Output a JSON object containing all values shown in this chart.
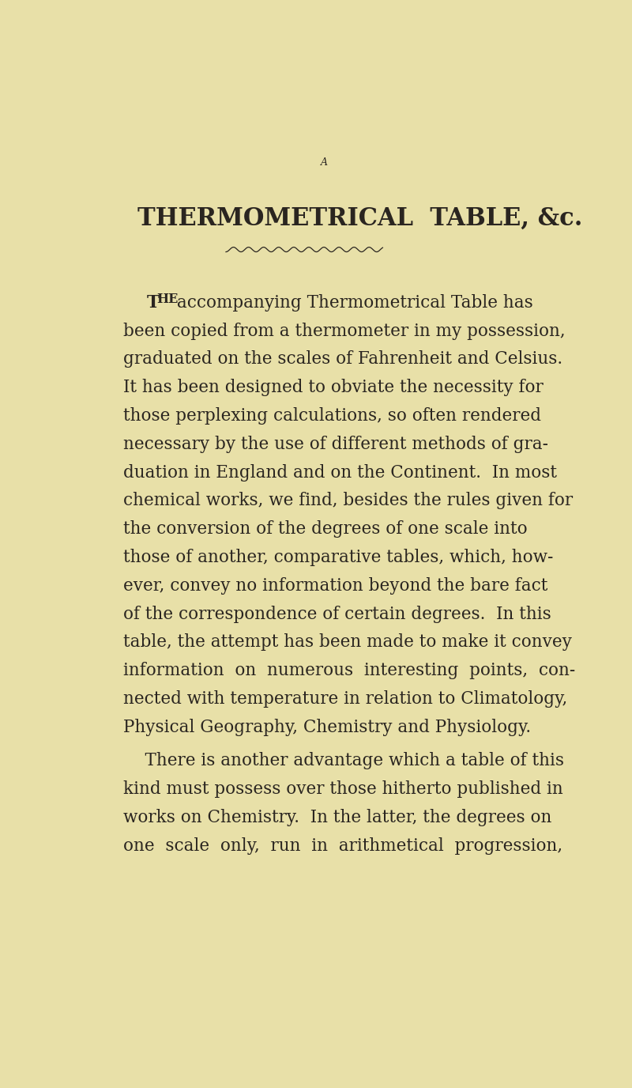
{
  "bg_color": "#e8e0a8",
  "text_color": "#2a2520",
  "page_width": 8.0,
  "page_height": 13.76,
  "top_letter": "A",
  "title": "THERMOMETRICAL  TABLE, ×c.",
  "lines1": [
    "The accompanying Thermometrical Table has",
    "been copied from a thermometer in my possession,",
    "graduated on the scales of Fahrenheit and Celsius.",
    "It has been designed to obviate the necessity for",
    "those perplexing calculations, so often rendered",
    "necessary by the use of different methods of gra-",
    "duation in England and on the Continent.  In most",
    "chemical works, we find, besides the rules given for",
    "the conversion of the degrees of one scale into",
    "those of another, comparative tables, which, how-",
    "ever, convey no information beyond the bare fact",
    "of the correspondence of certain degrees.  In this",
    "table, the attempt has been made to make it convey",
    "information  on  numerous  interesting  points,  con-",
    "nected with temperature in relation to Climatology,",
    "Physical Geography, Chemistry and Physiology."
  ],
  "lines2": [
    "    There is another advantage which a table of this",
    "kind must possess over those hitherto published in",
    "works on Chemistry.  In the latter, the degrees on",
    "one  scale  only,  run  in  arithmetical  progression,"
  ],
  "the_prefix": "T",
  "the_rest_prefix": "HE",
  "line0_remainder": " accompanying Thermometrical Table has"
}
